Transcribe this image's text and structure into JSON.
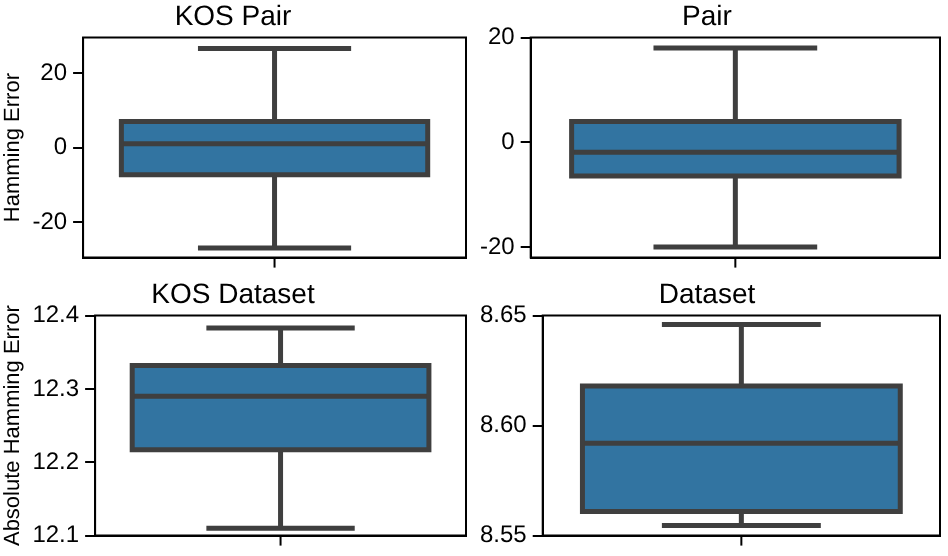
{
  "chart_data": [
    {
      "type": "box",
      "title": "KOS Pair",
      "ylabel": "Hamming Error",
      "categories": [
        null
      ],
      "color": "#3274a1",
      "ylim": [
        -29.5,
        29.5
      ],
      "yticks": [
        -20,
        0,
        20
      ],
      "grid": false,
      "boxes": [
        {
          "low": -26.9,
          "q1": -7.3,
          "median": 1,
          "q3": 7,
          "high": 26.6
        }
      ]
    },
    {
      "type": "box",
      "title": "Pair",
      "categories": [
        null
      ],
      "color": "#3274a1",
      "ylim": [
        -22,
        20
      ],
      "yticks": [
        -20,
        0,
        20
      ],
      "grid": false,
      "boxes": [
        {
          "low": -20,
          "q1": -6.4,
          "median": -1.9,
          "q3": 4,
          "high": 18
        }
      ]
    },
    {
      "type": "box",
      "title": "KOS Dataset",
      "ylabel": "Absolute Hamming Error",
      "categories": [
        null
      ],
      "color": "#3274a1",
      "ylim": [
        12.1,
        12.4
      ],
      "yticks": [
        12.1,
        12.2,
        12.3,
        12.4
      ],
      "grid": false,
      "boxes": [
        {
          "low": 12.11,
          "q1": 12.217,
          "median": 12.29,
          "q3": 12.332,
          "high": 12.383
        }
      ]
    },
    {
      "type": "box",
      "title": "Dataset",
      "categories": [
        null
      ],
      "color": "#3274a1",
      "ylim": [
        8.55,
        8.65
      ],
      "yticks": [
        8.55,
        {
          "value": 8.6,
          "label": "8.60"
        },
        8.65
      ],
      "grid": false,
      "boxes": [
        {
          "low": 8.5546,
          "q1": 8.561,
          "median": 8.592,
          "q3": 8.618,
          "high": 8.646
        }
      ]
    }
  ]
}
